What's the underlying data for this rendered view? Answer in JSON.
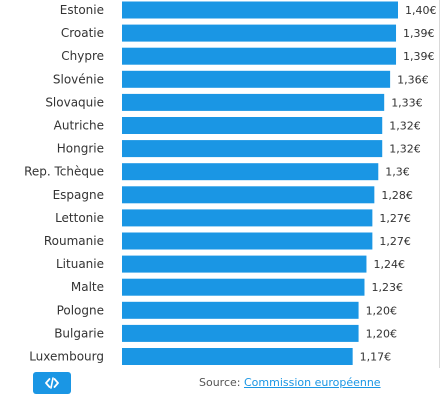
{
  "chart_data": {
    "type": "bar",
    "orientation": "horizontal",
    "categories": [
      "Estonie",
      "Croatie",
      "Chypre",
      "Slovénie",
      "Slovaquie",
      "Autriche",
      "Hongrie",
      "Rep. Tchèque",
      "Espagne",
      "Lettonie",
      "Roumanie",
      "Lituanie",
      "Malte",
      "Pologne",
      "Bulgarie",
      "Luxembourg"
    ],
    "values": [
      1.4,
      1.39,
      1.39,
      1.36,
      1.33,
      1.32,
      1.32,
      1.3,
      1.28,
      1.27,
      1.27,
      1.24,
      1.23,
      1.2,
      1.2,
      1.17
    ],
    "value_labels": [
      "1,40€",
      "1,39€",
      "1,39€",
      "1,36€",
      "1,33€",
      "1,32€",
      "1,32€",
      "1,3€",
      "1,28€",
      "1,27€",
      "1,27€",
      "1,24€",
      "1,23€",
      "1,20€",
      "1,20€",
      "1,17€"
    ],
    "title": "",
    "xlabel": "",
    "ylabel": "",
    "xlim": [
      0,
      1.4
    ],
    "grid": false,
    "colors": {
      "bar": "#1a96e4"
    }
  },
  "footer": {
    "embed_icon": "code-icon",
    "source_prefix": "Source: ",
    "source_link": "Commission européenne"
  }
}
